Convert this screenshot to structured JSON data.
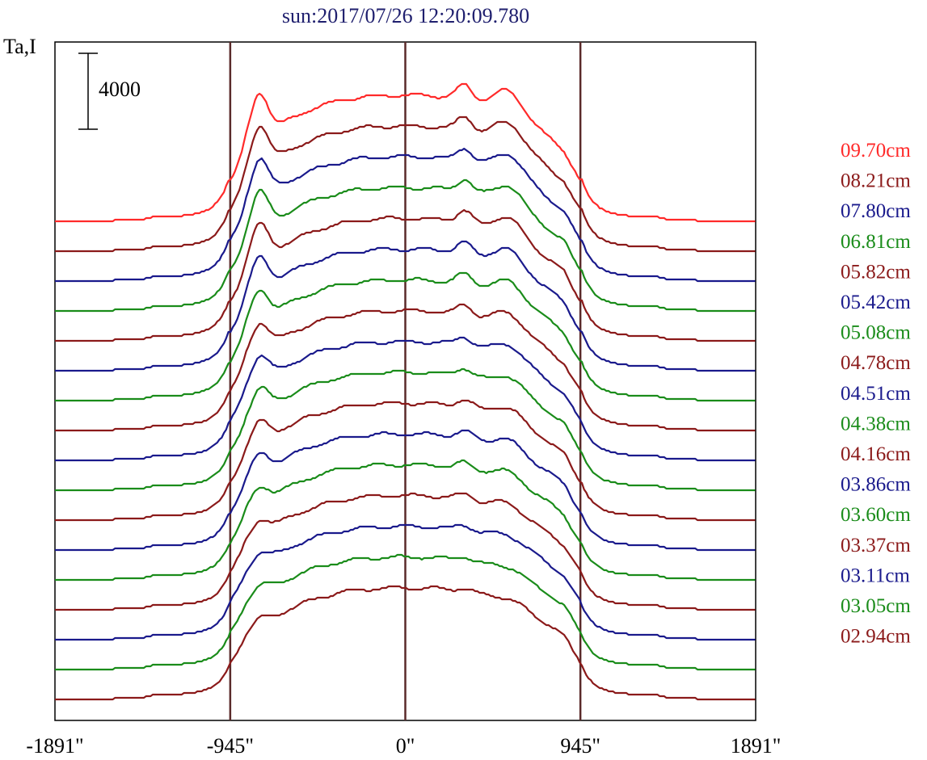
{
  "chart_data": {
    "type": "line",
    "title": "sun:2017/07/26 12:20:09.780",
    "ylabel": "Ta,I",
    "scale_bar_label": "4000",
    "x_ticks": [
      "-1891\"",
      "-945\"",
      "0\"",
      "945\"",
      "1891\""
    ],
    "x_tick_values": [
      -1891,
      -945,
      0,
      945,
      1891
    ],
    "xlim": [
      -1891,
      1891
    ],
    "vertical_lines": [
      -945,
      0,
      945
    ],
    "stacked_offsets": true,
    "grid": false,
    "legend_position": "right",
    "colors": {
      "red": "#ff2a2a",
      "maroon": "#8b1a1a",
      "navy": "#1a1a8c",
      "green": "#1a8c1a",
      "axis": "#000000",
      "marker": "#5a2a2a"
    },
    "series": [
      {
        "name": "09.70cm",
        "color": "#ff2a2a"
      },
      {
        "name": "08.21cm",
        "color": "#8b1a1a"
      },
      {
        "name": "07.80cm",
        "color": "#1a1a8c"
      },
      {
        "name": "06.81cm",
        "color": "#1a8c1a"
      },
      {
        "name": "05.82cm",
        "color": "#8b1a1a"
      },
      {
        "name": "05.42cm",
        "color": "#1a1a8c"
      },
      {
        "name": "05.08cm",
        "color": "#1a8c1a"
      },
      {
        "name": "04.78cm",
        "color": "#8b1a1a"
      },
      {
        "name": "04.51cm",
        "color": "#1a1a8c"
      },
      {
        "name": "04.38cm",
        "color": "#1a8c1a"
      },
      {
        "name": "04.16cm",
        "color": "#8b1a1a"
      },
      {
        "name": "03.86cm",
        "color": "#1a1a8c"
      },
      {
        "name": "03.60cm",
        "color": "#1a8c1a"
      },
      {
        "name": "03.37cm",
        "color": "#8b1a1a"
      },
      {
        "name": "03.11cm",
        "color": "#1a1a8c"
      },
      {
        "name": "03.05cm",
        "color": "#1a8c1a"
      },
      {
        "name": "02.94cm",
        "color": "#8b1a1a"
      }
    ]
  }
}
